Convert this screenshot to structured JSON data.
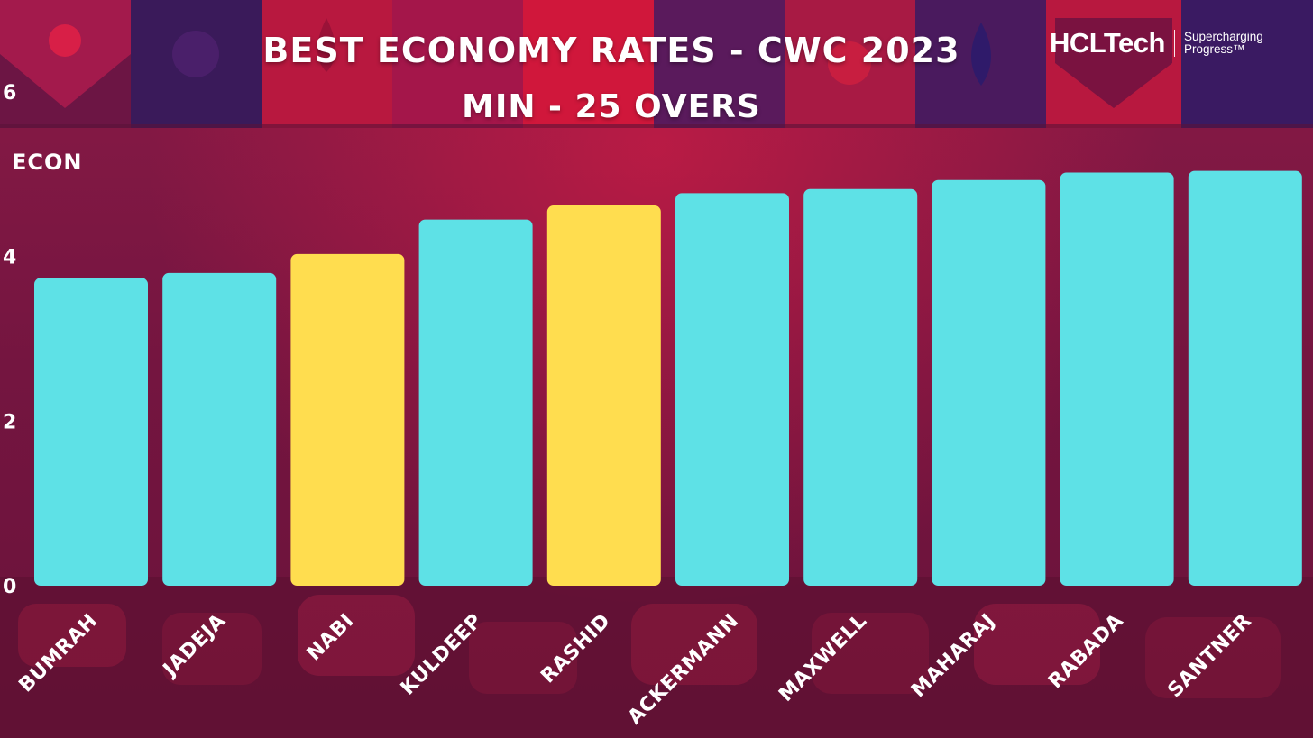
{
  "header": {
    "title": "BEST ECONOMY RATES - CWC 2023",
    "subtitle": "MIN - 25 OVERS"
  },
  "logo": {
    "wordmark": "HCLTech",
    "tagline": "Supercharging Progress™"
  },
  "colors": {
    "bar_default": "#5ee1e6",
    "bar_highlight": "#ffdd4f",
    "background": "#7a1742",
    "text": "#ffffff"
  },
  "chart_data": {
    "type": "bar",
    "ylabel": "ECON",
    "xlabel": "",
    "ylim": [
      0,
      6
    ],
    "yticks": [
      0,
      2,
      4,
      6
    ],
    "grid": false,
    "categories": [
      "BUMRAH",
      "JADEJA",
      "NABI",
      "KULDEEP",
      "RASHID",
      "ACKERMANN",
      "MAXWELL",
      "MAHARAJ",
      "RABADA",
      "SANTNER"
    ],
    "values": [
      3.74,
      3.8,
      4.03,
      4.45,
      4.62,
      4.77,
      4.82,
      4.93,
      5.02,
      5.04
    ],
    "highlighted": [
      "NABI",
      "RASHID"
    ]
  }
}
